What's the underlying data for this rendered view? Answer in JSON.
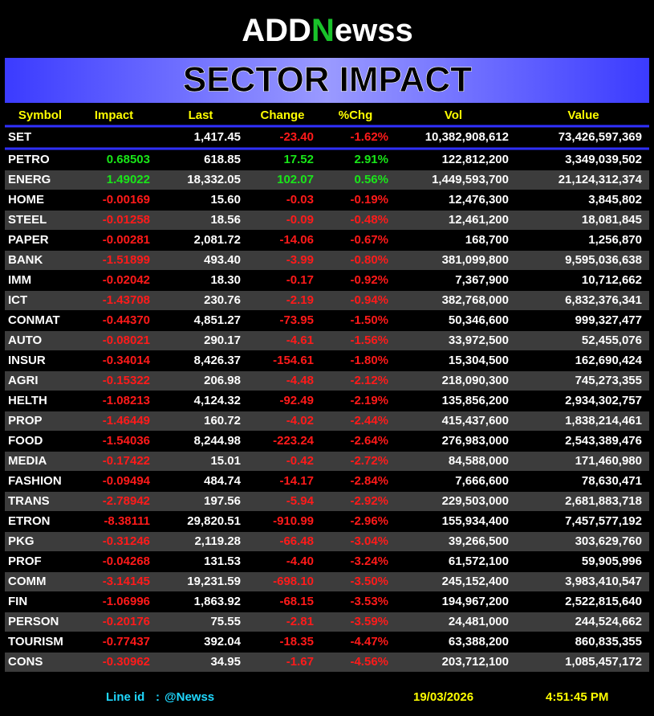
{
  "logo": {
    "left": "ADD",
    "mark": "N",
    "right": "ewss"
  },
  "banner": "SECTOR IMPACT",
  "table": {
    "header": [
      "Symbol",
      "Impact",
      "Last",
      "Change",
      "%Chg",
      "Vol",
      "Value"
    ],
    "index": {
      "symbol": "SET",
      "last": "1,417.45",
      "change": "-23.40",
      "pct": "-1.62%",
      "vol": "10,382,908,612",
      "value": "73,426,597,369"
    },
    "rows": [
      [
        "PETRO",
        "0.68503",
        "618.85",
        "17.52",
        "2.91%",
        "122,812,200",
        "3,349,039,502"
      ],
      [
        "ENERG",
        "1.49022",
        "18,332.05",
        "102.07",
        "0.56%",
        "1,449,593,700",
        "21,124,312,374"
      ],
      [
        "HOME",
        "-0.00169",
        "15.60",
        "-0.03",
        "-0.19%",
        "12,476,300",
        "3,845,802"
      ],
      [
        "STEEL",
        "-0.01258",
        "18.56",
        "-0.09",
        "-0.48%",
        "12,461,200",
        "18,081,845"
      ],
      [
        "PAPER",
        "-0.00281",
        "2,081.72",
        "-14.06",
        "-0.67%",
        "168,700",
        "1,256,870"
      ],
      [
        "BANK",
        "-1.51899",
        "493.40",
        "-3.99",
        "-0.80%",
        "381,099,800",
        "9,595,036,638"
      ],
      [
        "IMM",
        "-0.02042",
        "18.30",
        "-0.17",
        "-0.92%",
        "7,367,900",
        "10,712,662"
      ],
      [
        "ICT",
        "-1.43708",
        "230.76",
        "-2.19",
        "-0.94%",
        "382,768,000",
        "6,832,376,341"
      ],
      [
        "CONMAT",
        "-0.44370",
        "4,851.27",
        "-73.95",
        "-1.50%",
        "50,346,600",
        "999,327,477"
      ],
      [
        "AUTO",
        "-0.08021",
        "290.17",
        "-4.61",
        "-1.56%",
        "33,972,500",
        "52,455,076"
      ],
      [
        "INSUR",
        "-0.34014",
        "8,426.37",
        "-154.61",
        "-1.80%",
        "15,304,500",
        "162,690,424"
      ],
      [
        "AGRI",
        "-0.15322",
        "206.98",
        "-4.48",
        "-2.12%",
        "218,090,300",
        "745,273,355"
      ],
      [
        "HELTH",
        "-1.08213",
        "4,124.32",
        "-92.49",
        "-2.19%",
        "135,856,200",
        "2,934,302,757"
      ],
      [
        "PROP",
        "-1.46449",
        "160.72",
        "-4.02",
        "-2.44%",
        "415,437,600",
        "1,838,214,461"
      ],
      [
        "FOOD",
        "-1.54036",
        "8,244.98",
        "-223.24",
        "-2.64%",
        "276,983,000",
        "2,543,389,476"
      ],
      [
        "MEDIA",
        "-0.17422",
        "15.01",
        "-0.42",
        "-2.72%",
        "84,588,000",
        "171,460,980"
      ],
      [
        "FASHION",
        "-0.09494",
        "484.74",
        "-14.17",
        "-2.84%",
        "7,666,600",
        "78,630,471"
      ],
      [
        "TRANS",
        "-2.78942",
        "197.56",
        "-5.94",
        "-2.92%",
        "229,503,000",
        "2,681,883,718"
      ],
      [
        "ETRON",
        "-8.38111",
        "29,820.51",
        "-910.99",
        "-2.96%",
        "155,934,400",
        "7,457,577,192"
      ],
      [
        "PKG",
        "-0.31246",
        "2,119.28",
        "-66.48",
        "-3.04%",
        "39,266,500",
        "303,629,760"
      ],
      [
        "PROF",
        "-0.04268",
        "131.53",
        "-4.40",
        "-3.24%",
        "61,572,100",
        "59,905,996"
      ],
      [
        "COMM",
        "-3.14145",
        "19,231.59",
        "-698.10",
        "-3.50%",
        "245,152,400",
        "3,983,410,547"
      ],
      [
        "FIN",
        "-1.06996",
        "1,863.92",
        "-68.15",
        "-3.53%",
        "194,967,200",
        "2,522,815,640"
      ],
      [
        "PERSON",
        "-0.20176",
        "75.55",
        "-2.81",
        "-3.59%",
        "24,481,000",
        "244,524,662"
      ],
      [
        "TOURISM",
        "-0.77437",
        "392.04",
        "-18.35",
        "-4.47%",
        "63,388,200",
        "860,835,355"
      ],
      [
        "CONS",
        "-0.30962",
        "34.95",
        "-1.67",
        "-4.56%",
        "203,712,100",
        "1,085,457,172"
      ]
    ]
  },
  "footer": {
    "line_label": "Line id",
    "separator": ":",
    "line_id": "@Newss",
    "date": "19/03/2026",
    "time": "4:51:45 PM"
  }
}
